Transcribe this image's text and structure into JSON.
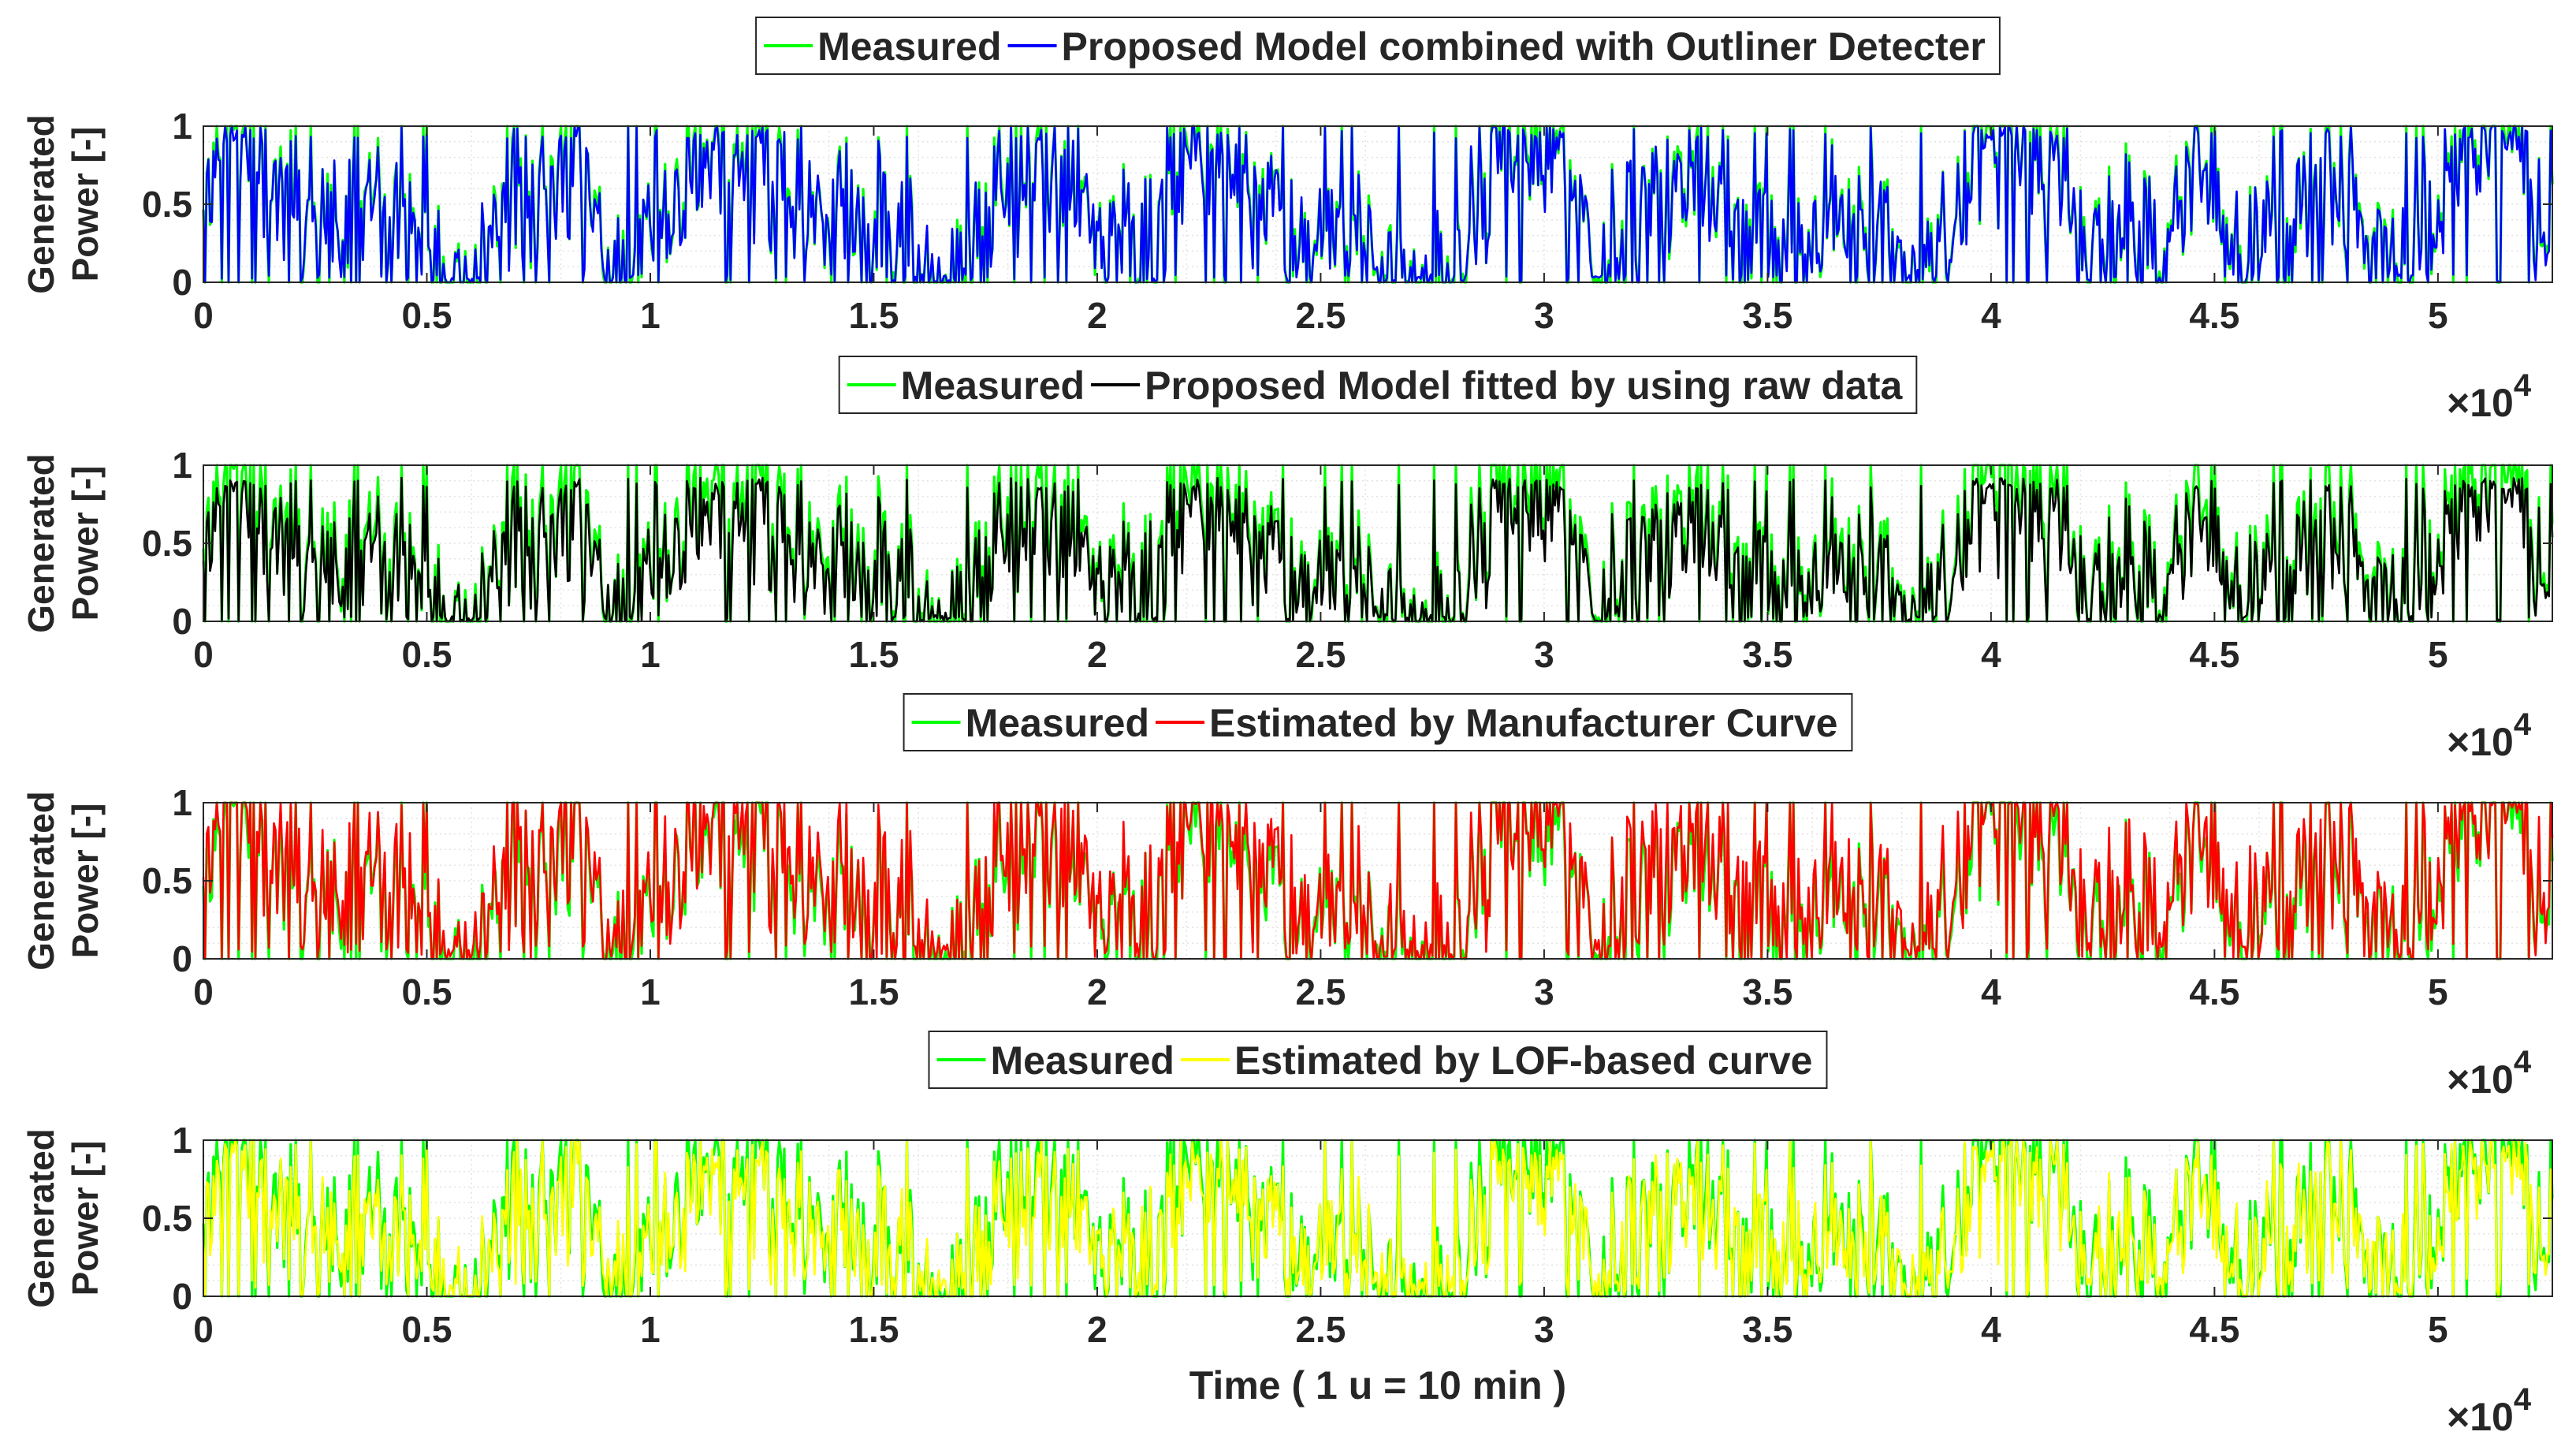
{
  "chart_data": [
    {
      "type": "line",
      "title": "",
      "xlabel": "",
      "ylabel_lines": [
        "Generated",
        "Power [-]"
      ],
      "xlim": [
        0,
        52560
      ],
      "ylim": [
        0,
        1
      ],
      "x_ticks": [
        0,
        0.5,
        1,
        1.5,
        2,
        2.5,
        3,
        3.5,
        4,
        4.5,
        5
      ],
      "x_tick_labels": [
        "0",
        "0.5",
        "1",
        "1.5",
        "2",
        "2.5",
        "3",
        "3.5",
        "4",
        "4.5",
        "5"
      ],
      "y_ticks": [
        0,
        0.5,
        1
      ],
      "y_tick_labels": [
        "0",
        "0.5",
        "1"
      ],
      "x_exponent": "×10",
      "x_exponent_power": "4",
      "grid": true,
      "legend_position": "top-center",
      "series": [
        {
          "name": "Measured",
          "color": "#00ff00",
          "seed": 11,
          "scale": 1.0,
          "noise": 0.0
        },
        {
          "name": "Proposed Model combined with Outliner Detecter",
          "color": "#0000ff",
          "seed": 11,
          "scale": 0.97,
          "noise": 0.05
        }
      ]
    },
    {
      "type": "line",
      "title": "",
      "xlabel": "",
      "ylabel_lines": [
        "Generated",
        "Power [-]"
      ],
      "xlim": [
        0,
        52560
      ],
      "ylim": [
        0,
        1
      ],
      "x_ticks": [
        0,
        0.5,
        1,
        1.5,
        2,
        2.5,
        3,
        3.5,
        4,
        4.5,
        5
      ],
      "x_tick_labels": [
        "0",
        "0.5",
        "1",
        "1.5",
        "2",
        "2.5",
        "3",
        "3.5",
        "4",
        "4.5",
        "5"
      ],
      "y_ticks": [
        0,
        0.5,
        1
      ],
      "y_tick_labels": [
        "0",
        "0.5",
        "1"
      ],
      "x_exponent": "×10",
      "x_exponent_power": "4",
      "grid": true,
      "legend_position": "top-center",
      "series": [
        {
          "name": "Measured",
          "color": "#00ff00",
          "seed": 11,
          "scale": 1.0,
          "noise": 0.0
        },
        {
          "name": "Proposed Model fitted by using raw data",
          "color": "#000000",
          "seed": 11,
          "scale": 0.88,
          "noise": 0.04
        }
      ]
    },
    {
      "type": "line",
      "title": "",
      "xlabel": "",
      "ylabel_lines": [
        "Generated",
        "Power [-]"
      ],
      "xlim": [
        0,
        52560
      ],
      "ylim": [
        0,
        1
      ],
      "x_ticks": [
        0,
        0.5,
        1,
        1.5,
        2,
        2.5,
        3,
        3.5,
        4,
        4.5,
        5
      ],
      "x_tick_labels": [
        "0",
        "0.5",
        "1",
        "1.5",
        "2",
        "2.5",
        "3",
        "3.5",
        "4",
        "4.5",
        "5"
      ],
      "y_ticks": [
        0,
        0.5,
        1
      ],
      "y_tick_labels": [
        "0",
        "0.5",
        "1"
      ],
      "x_exponent": "×10",
      "x_exponent_power": "4",
      "grid": true,
      "legend_position": "top-center",
      "series": [
        {
          "name": "Measured",
          "color": "#00ff00",
          "seed": 11,
          "scale": 1.0,
          "noise": 0.0
        },
        {
          "name": "Estimated by Manufacturer Curve",
          "color": "#ff0000",
          "seed": 11,
          "scale": 1.08,
          "noise": 0.1
        }
      ]
    },
    {
      "type": "line",
      "title": "",
      "xlabel": "Time ( 1 u = 10 min )",
      "ylabel_lines": [
        "Generated",
        "Power [-]"
      ],
      "xlim": [
        0,
        52560
      ],
      "ylim": [
        0,
        1
      ],
      "x_ticks": [
        0,
        0.5,
        1,
        1.5,
        2,
        2.5,
        3,
        3.5,
        4,
        4.5,
        5
      ],
      "x_tick_labels": [
        "0",
        "0.5",
        "1",
        "1.5",
        "2",
        "2.5",
        "3",
        "3.5",
        "4",
        "4.5",
        "5"
      ],
      "y_ticks": [
        0,
        0.5,
        1
      ],
      "y_tick_labels": [
        "0",
        "0.5",
        "1"
      ],
      "x_exponent": "×10",
      "x_exponent_power": "4",
      "grid": true,
      "legend_position": "top-center",
      "series": [
        {
          "name": "Measured",
          "color": "#00ff00",
          "seed": 11,
          "scale": 1.0,
          "noise": 0.0
        },
        {
          "name": "Estimated by LOF-based curve",
          "color": "#ffff00",
          "seed": 11,
          "scale": 0.92,
          "noise": 0.12,
          "floor": 0.12
        }
      ]
    }
  ]
}
